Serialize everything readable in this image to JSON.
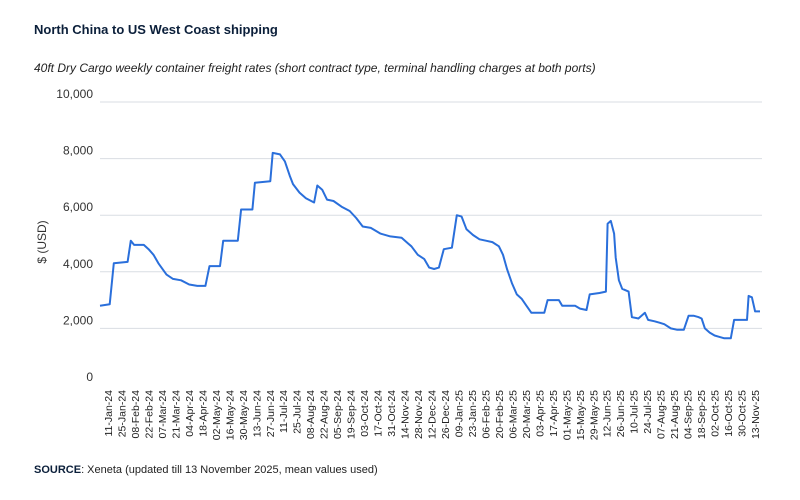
{
  "header": {
    "title": "North China to US West Coast shipping",
    "subtitle": "40ft Dry Cargo weekly container freight rates (short contract type, terminal handling charges at both ports)"
  },
  "footer": {
    "source_label": "SOURCE",
    "source_text": ": Xeneta (updated till 13 November 2025, mean values used)"
  },
  "colors": {
    "line": "#2a6fdb",
    "grid": "#d9dde3",
    "text": "#0b1f3a"
  },
  "chart_data": {
    "type": "line",
    "title": "North China to US West Coast shipping",
    "subtitle": "40ft Dry Cargo weekly container freight rates (short contract type, terminal handling charges at both ports)",
    "xlabel": "",
    "ylabel": "$ (USD)",
    "ylim": [
      0,
      10000
    ],
    "yticks": [
      0,
      2000,
      4000,
      6000,
      8000,
      10000
    ],
    "ytick_labels": [
      "0",
      "2,000",
      "4,000",
      "6,000",
      "8,000",
      "10,000"
    ],
    "grid": true,
    "x_tick_labels": [
      "11-Jan-24",
      "25-Jan-24",
      "08-Feb-24",
      "22-Feb-24",
      "07-Mar-24",
      "21-Mar-24",
      "04-Apr-24",
      "18-Apr-24",
      "02-May-24",
      "16-May-24",
      "30-May-24",
      "13-Jun-24",
      "27-Jun-24",
      "11-Jul-24",
      "25-Jul-24",
      "08-Aug-24",
      "22-Aug-24",
      "05-Sep-24",
      "19-Sep-24",
      "03-Oct-24",
      "17-Oct-24",
      "31-Oct-24",
      "14-Nov-24",
      "28-Nov-24",
      "12-Dec-24",
      "26-Dec-24",
      "09-Jan-25",
      "23-Jan-25",
      "06-Feb-25",
      "20-Feb-25",
      "06-Mar-25",
      "20-Mar-25",
      "03-Apr-25",
      "17-Apr-25",
      "01-May-25",
      "15-May-25",
      "29-May-25",
      "12-Jun-25",
      "26-Jun-25",
      "10-Jul-25",
      "24-Jul-25",
      "07-Aug-25",
      "21-Aug-25",
      "04-Sep-25",
      "18-Sep-25",
      "02-Oct-25",
      "16-Oct-25",
      "30-Oct-25",
      "13-Nov-25"
    ],
    "series": [
      {
        "values": [
          [
            0,
            2800
          ],
          [
            0.6,
            2850
          ],
          [
            0.85,
            4300
          ],
          [
            1.7,
            4350
          ],
          [
            1.9,
            5100
          ],
          [
            2.1,
            4950
          ],
          [
            2.7,
            4950
          ],
          [
            3.0,
            4800
          ],
          [
            3.3,
            4600
          ],
          [
            3.6,
            4300
          ],
          [
            4.1,
            3900
          ],
          [
            4.5,
            3750
          ],
          [
            5.0,
            3700
          ],
          [
            5.5,
            3550
          ],
          [
            6.0,
            3500
          ],
          [
            6.5,
            3500
          ],
          [
            6.75,
            4200
          ],
          [
            7.4,
            4200
          ],
          [
            7.6,
            5100
          ],
          [
            8.5,
            5100
          ],
          [
            8.7,
            6200
          ],
          [
            9.4,
            6200
          ],
          [
            9.55,
            7150
          ],
          [
            10.5,
            7200
          ],
          [
            10.65,
            8200
          ],
          [
            11.1,
            8150
          ],
          [
            11.4,
            7900
          ],
          [
            11.7,
            7400
          ],
          [
            11.9,
            7100
          ],
          [
            12.3,
            6800
          ],
          [
            12.7,
            6600
          ],
          [
            13.2,
            6450
          ],
          [
            13.4,
            7050
          ],
          [
            13.7,
            6900
          ],
          [
            14.0,
            6550
          ],
          [
            14.4,
            6500
          ],
          [
            14.9,
            6300
          ],
          [
            15.4,
            6150
          ],
          [
            15.8,
            5900
          ],
          [
            16.2,
            5600
          ],
          [
            16.7,
            5550
          ],
          [
            17.3,
            5350
          ],
          [
            17.9,
            5250
          ],
          [
            18.6,
            5200
          ],
          [
            19.0,
            5000
          ],
          [
            19.2,
            4900
          ],
          [
            19.6,
            4600
          ],
          [
            20.0,
            4450
          ],
          [
            20.3,
            4150
          ],
          [
            20.6,
            4100
          ],
          [
            20.9,
            4150
          ],
          [
            21.2,
            4800
          ],
          [
            21.7,
            4850
          ],
          [
            22.0,
            6000
          ],
          [
            22.3,
            5950
          ],
          [
            22.6,
            5500
          ],
          [
            23.0,
            5300
          ],
          [
            23.4,
            5150
          ],
          [
            23.8,
            5100
          ],
          [
            24.2,
            5050
          ],
          [
            24.6,
            4900
          ],
          [
            24.85,
            4600
          ],
          [
            25.1,
            4100
          ],
          [
            25.4,
            3600
          ],
          [
            25.7,
            3200
          ],
          [
            26.0,
            3050
          ],
          [
            26.3,
            2800
          ],
          [
            26.6,
            2550
          ],
          [
            27.0,
            2550
          ],
          [
            27.4,
            2550
          ],
          [
            27.6,
            3000
          ],
          [
            28.3,
            3000
          ],
          [
            28.5,
            2800
          ],
          [
            29.3,
            2800
          ],
          [
            29.6,
            2700
          ],
          [
            30.0,
            2650
          ],
          [
            30.2,
            3200
          ],
          [
            30.8,
            3250
          ],
          [
            31.2,
            3300
          ],
          [
            31.3,
            5700
          ],
          [
            31.5,
            5800
          ],
          [
            31.7,
            5350
          ],
          [
            31.8,
            4500
          ],
          [
            32.0,
            3700
          ],
          [
            32.2,
            3400
          ],
          [
            32.6,
            3300
          ],
          [
            32.8,
            2400
          ],
          [
            33.2,
            2350
          ],
          [
            33.6,
            2550
          ],
          [
            33.8,
            2300
          ],
          [
            34.2,
            2250
          ],
          [
            34.5,
            2200
          ],
          [
            34.8,
            2150
          ],
          [
            35.2,
            2000
          ],
          [
            35.6,
            1950
          ],
          [
            36.0,
            1950
          ],
          [
            36.3,
            2450
          ],
          [
            36.6,
            2450
          ],
          [
            36.9,
            2400
          ],
          [
            37.1,
            2350
          ],
          [
            37.3,
            2000
          ],
          [
            37.6,
            1850
          ],
          [
            37.9,
            1750
          ],
          [
            38.2,
            1700
          ],
          [
            38.5,
            1650
          ],
          [
            38.9,
            1650
          ],
          [
            39.1,
            2300
          ],
          [
            39.4,
            2300
          ],
          [
            39.7,
            2300
          ],
          [
            39.9,
            2300
          ],
          [
            40.0,
            3150
          ],
          [
            40.2,
            3100
          ],
          [
            40.4,
            2600
          ],
          [
            40.7,
            2600
          ]
        ]
      }
    ],
    "x_domain": [
      0,
      40.7
    ]
  }
}
